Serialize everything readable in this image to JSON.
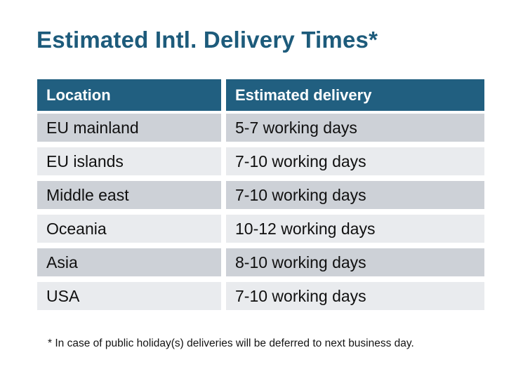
{
  "title": {
    "text": "Estimated Intl. Delivery Times*",
    "color": "#1d5b7b"
  },
  "table": {
    "header": {
      "location_label": "Location",
      "delivery_label": "Estimated delivery",
      "bg_color": "#215f80",
      "text_color": "#ffffff"
    },
    "rows": [
      {
        "location": "EU mainland",
        "delivery": "5-7 working days"
      },
      {
        "location": "EU islands",
        "delivery": "7-10 working days"
      },
      {
        "location": "Middle east",
        "delivery": "7-10 working days"
      },
      {
        "location": "Oceania",
        "delivery": "10-12 working days"
      },
      {
        "location": "Asia",
        "delivery": "8-10 working days"
      },
      {
        "location": "USA",
        "delivery": "7-10 working days"
      }
    ],
    "row_colors": {
      "odd": "#cdd1d7",
      "even": "#e9ebee"
    }
  },
  "footnote": {
    "text": "* In case of public holiday(s) deliveries will be deferred to next business day."
  }
}
